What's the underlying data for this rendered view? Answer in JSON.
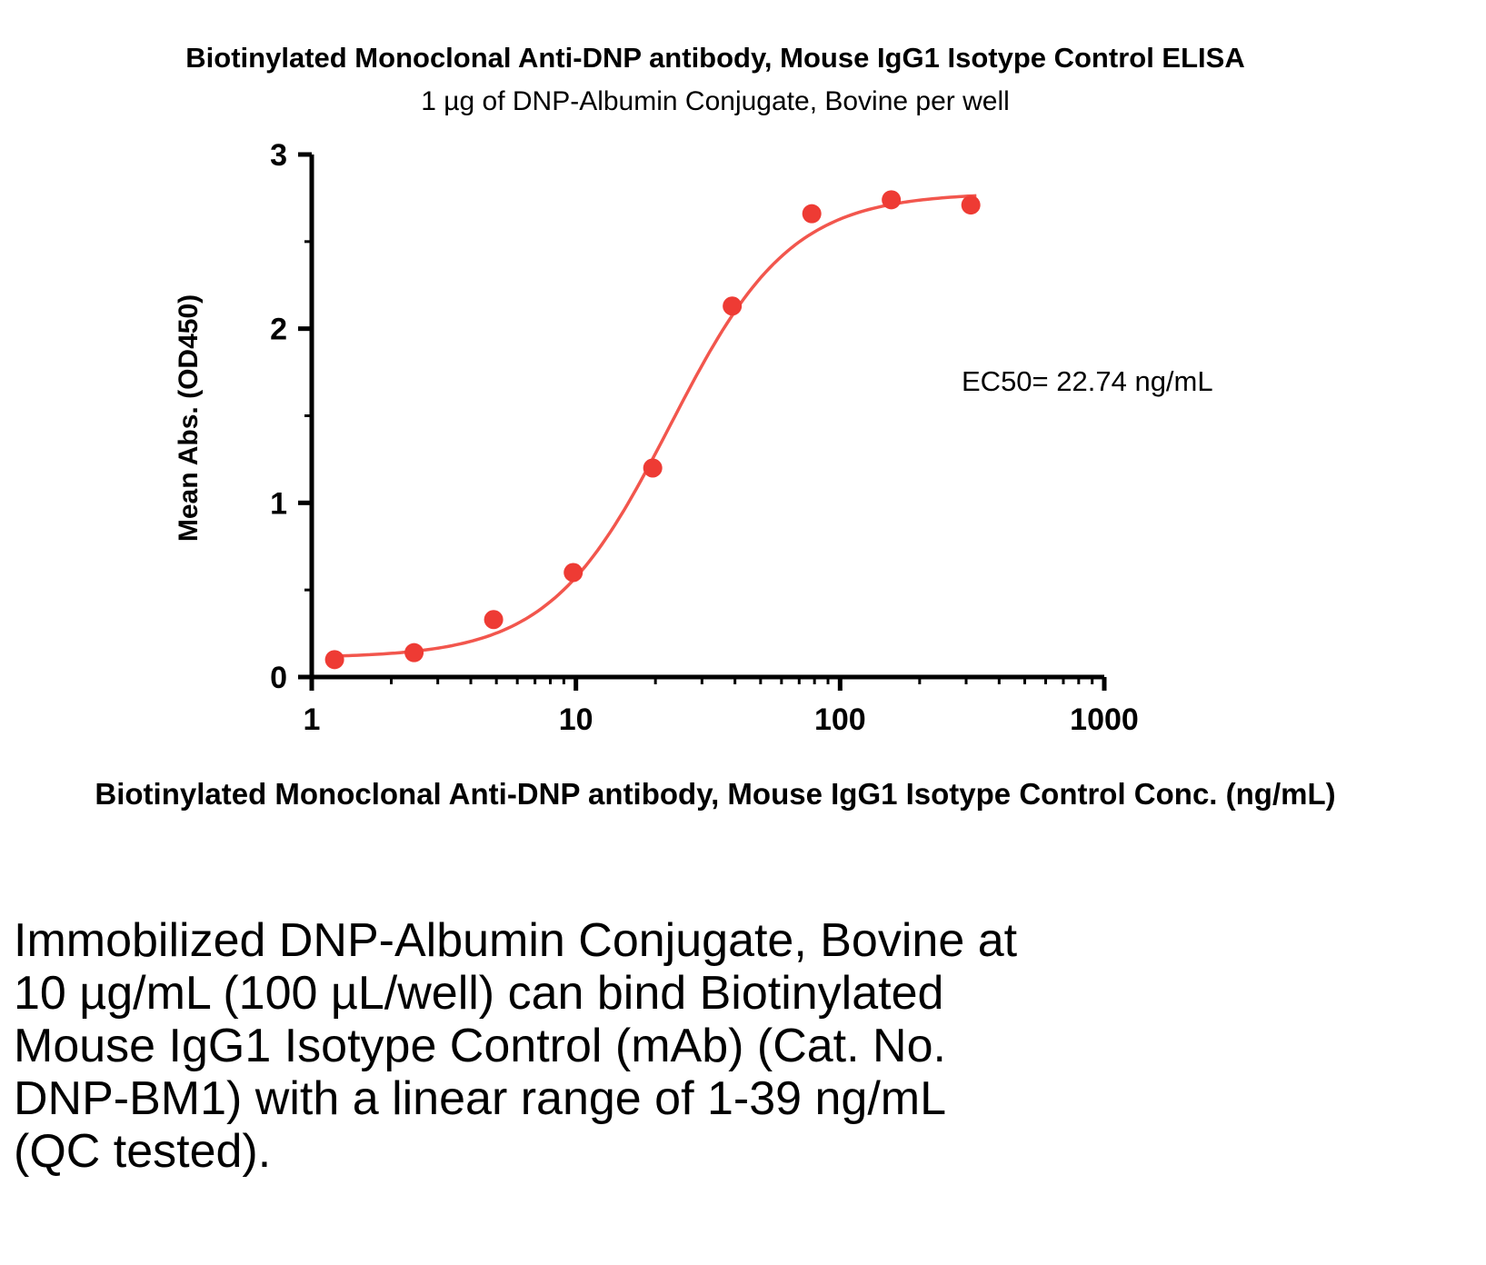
{
  "chart_data": {
    "type": "scatter",
    "title": "Biotinylated Monoclonal Anti-DNP antibody, Mouse IgG1 Isotype Control ELISA",
    "subtitle": "1 µg of DNP-Albumin Conjugate, Bovine per well",
    "xlabel": "Biotinylated Monoclonal Anti-DNP antibody, Mouse IgG1 Isotype Control Conc. (ng/mL)",
    "ylabel": "Mean Abs. (OD450)",
    "annotation": "EC50= 22.74 ng/mL",
    "ec50_ng_ml": 22.74,
    "series_name": "Biotinylated Mouse IgG1 Isotype Control",
    "x": [
      1.22,
      2.44,
      4.88,
      9.77,
      19.53,
      39.06,
      78.13,
      156.25,
      312.5
    ],
    "y": [
      0.1,
      0.14,
      0.33,
      0.6,
      1.2,
      2.13,
      2.66,
      2.74,
      2.71
    ],
    "xscale": "log10",
    "xlim": [
      1,
      1000
    ],
    "ylim": [
      0,
      3
    ],
    "x_ticks": [
      1,
      10,
      100,
      1000
    ],
    "y_ticks": [
      0,
      1,
      2,
      3
    ],
    "y_minor_step": 0.5,
    "grid": false,
    "legend": false,
    "curve_fit": {
      "model": "4PL",
      "bottom": 0.11,
      "top": 2.78,
      "ec50": 22.74,
      "hill": 1.9
    },
    "point_color": "#EE3B34",
    "line_color": "#F2564D",
    "axis_color": "#000000"
  },
  "caption": {
    "text": "Immobilized DNP-Albumin Conjugate, Bovine at\n10 µg/mL (100 µL/well) can bind Biotinylated\nMouse IgG1 Isotype Control (mAb) (Cat. No.\nDNP-BM1) with a linear range of 1-39 ng/mL\n(QC tested)."
  }
}
